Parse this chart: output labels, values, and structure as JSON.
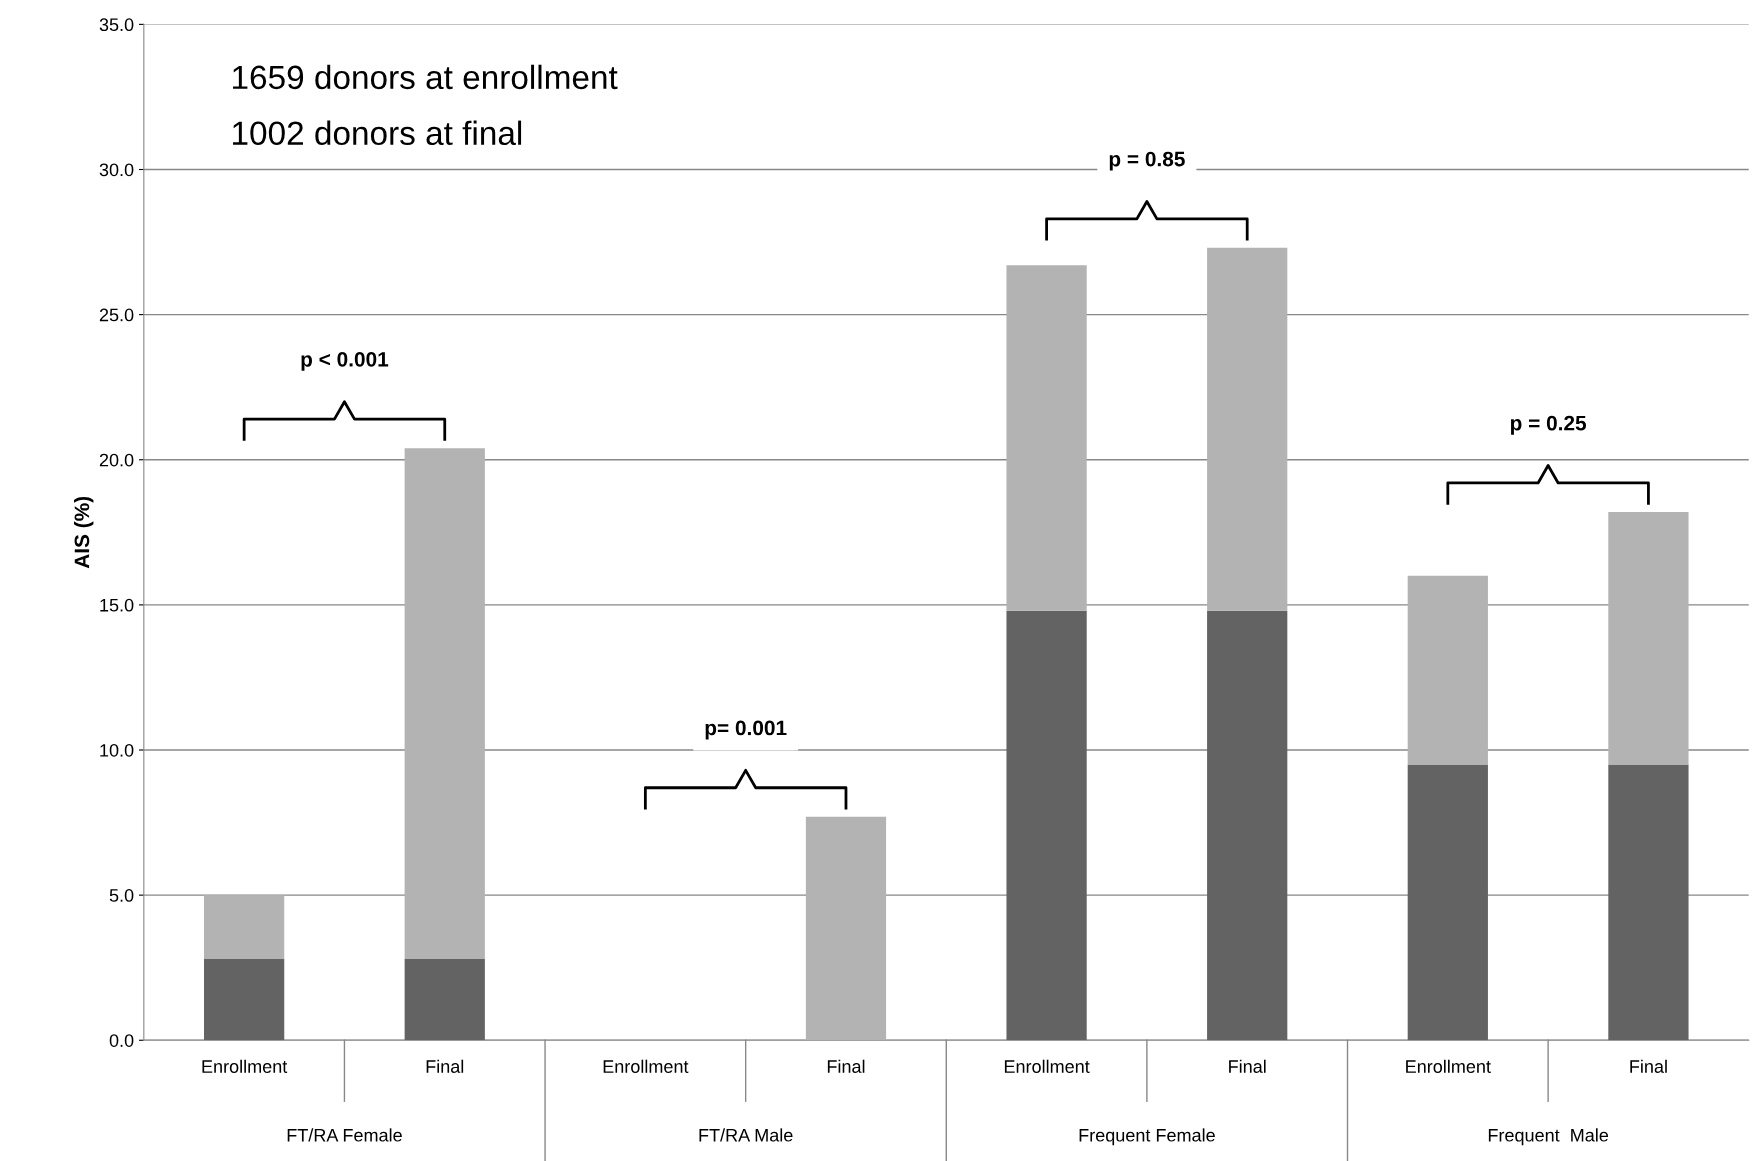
{
  "chart_data": {
    "type": "bar",
    "stacked": true,
    "ylabel": "AIS (%)",
    "categories": [
      "Enrollment",
      "Final",
      "Enrollment",
      "Final",
      "Enrollment",
      "Final",
      "Enrollment",
      "Final"
    ],
    "series": [
      {
        "color": "#636363",
        "values": [
          2.8,
          2.8,
          0,
          0,
          14.8,
          14.8,
          9.5,
          9.5
        ]
      },
      {
        "color": "#b3b3b3",
        "values": [
          2.2,
          17.6,
          0,
          7.7,
          11.9,
          12.5,
          6.5,
          8.7
        ]
      }
    ],
    "ylim": [
      0,
      35
    ],
    "yticks": [
      {
        "value": 0,
        "label": "0.0"
      },
      {
        "value": 5,
        "label": "5.0"
      },
      {
        "value": 10,
        "label": "10.0"
      },
      {
        "value": 15,
        "label": "15.0"
      },
      {
        "value": 20,
        "label": "20.0"
      },
      {
        "value": 25,
        "label": "25.0"
      },
      {
        "value": 30,
        "label": "30.0"
      },
      {
        "value": 35,
        "label": "35.0"
      }
    ],
    "grid": "y",
    "legend": false,
    "annotations": [
      "1659 donors at enrollment",
      "1002 donors at final",
      "p < 0.001",
      "p= 0.001",
      "p = 0.85",
      "p = 0.25",
      "FT/RA Female",
      "FT/RA Male",
      "Frequent Female",
      "Frequent  Male"
    ]
  }
}
